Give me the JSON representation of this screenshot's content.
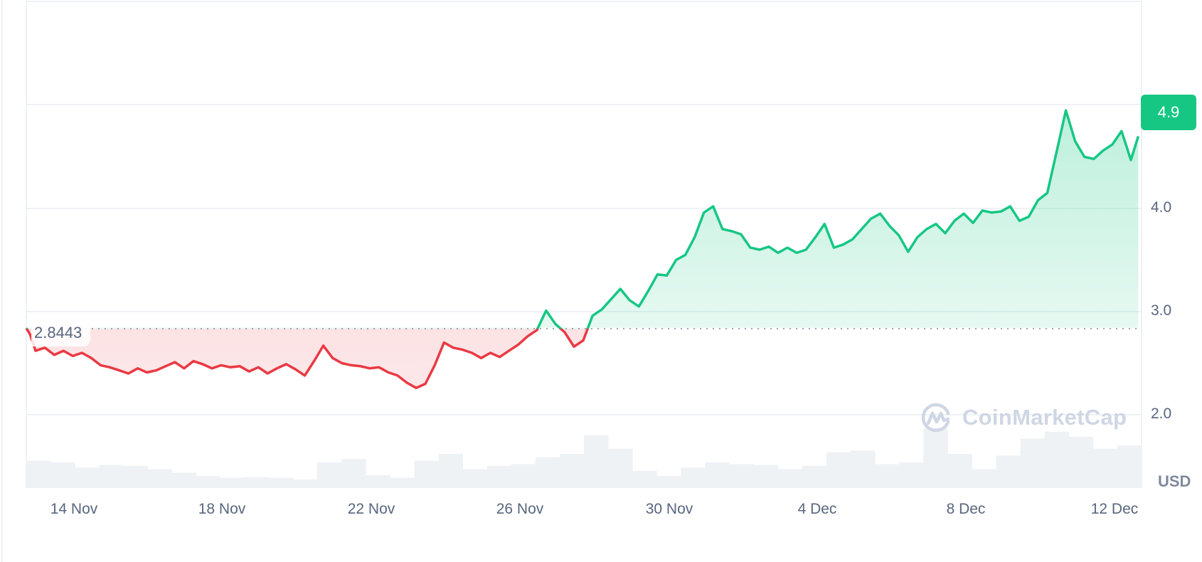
{
  "chart_data": {
    "type": "area",
    "title": "",
    "xlabel": "",
    "ylabel": "USD",
    "ylim": [
      1.3,
      5.6
    ],
    "grid": true,
    "baseline": 2.8443,
    "current_price": 4.9,
    "x_ticks": [
      "14 Nov",
      "18 Nov",
      "22 Nov",
      "26 Nov",
      "30 Nov",
      "4 Dec",
      "8 Dec",
      "12 Dec"
    ],
    "y_ticks": [
      "2.0",
      "3.0",
      "4.0"
    ],
    "colors": {
      "up": "#16c784",
      "down": "#ea3943",
      "grid": "#eff2f5",
      "volume": "#eff2f5"
    },
    "series": [
      {
        "name": "Price",
        "x_days": [
          0,
          0.1,
          0.25,
          0.5,
          0.75,
          1,
          1.25,
          1.5,
          1.75,
          2,
          2.25,
          2.5,
          2.75,
          3,
          3.25,
          3.5,
          3.75,
          4,
          4.25,
          4.5,
          4.75,
          5,
          5.25,
          5.5,
          5.75,
          6,
          6.25,
          6.5,
          6.75,
          7,
          7.25,
          7.5,
          7.75,
          8,
          8.25,
          8.5,
          8.75,
          9,
          9.25,
          9.5,
          9.75,
          10,
          10.25,
          10.5,
          10.75,
          11,
          11.25,
          11.5,
          11.75,
          12,
          12.25,
          12.5,
          12.75,
          13,
          13.25,
          13.5,
          13.75,
          14,
          14.25,
          14.5,
          14.75,
          15,
          15.25,
          15.5,
          15.75,
          16,
          16.25,
          16.5,
          16.75,
          17,
          17.25,
          17.5,
          17.75,
          18,
          18.25,
          18.5,
          18.75,
          19,
          19.25,
          19.5,
          19.75,
          20,
          20.25,
          20.5,
          20.75,
          21,
          21.25,
          21.5,
          21.75,
          22,
          22.25,
          22.5,
          22.75,
          23,
          23.25,
          23.5,
          23.75,
          24,
          24.25,
          24.5,
          24.75,
          25,
          25.25,
          25.5,
          25.75,
          26,
          26.25,
          26.5,
          26.75,
          27,
          27.25,
          27.5,
          27.75,
          28,
          28.25,
          28.5,
          28.75,
          29,
          29.25,
          29.5,
          29.75,
          29.95
        ],
        "values": [
          2.84,
          2.78,
          2.62,
          2.65,
          2.58,
          2.62,
          2.57,
          2.6,
          2.55,
          2.48,
          2.46,
          2.43,
          2.4,
          2.45,
          2.41,
          2.43,
          2.47,
          2.51,
          2.45,
          2.52,
          2.49,
          2.45,
          2.48,
          2.46,
          2.47,
          2.42,
          2.46,
          2.4,
          2.45,
          2.49,
          2.44,
          2.38,
          2.52,
          2.67,
          2.55,
          2.5,
          2.48,
          2.47,
          2.45,
          2.46,
          2.41,
          2.38,
          2.31,
          2.26,
          2.3,
          2.48,
          2.7,
          2.65,
          2.63,
          2.6,
          2.55,
          2.6,
          2.56,
          2.62,
          2.68,
          2.76,
          2.82,
          3.01,
          2.88,
          2.8,
          2.66,
          2.72,
          2.96,
          3.02,
          3.12,
          3.22,
          3.11,
          3.05,
          3.2,
          3.36,
          3.35,
          3.5,
          3.55,
          3.72,
          3.96,
          4.02,
          3.8,
          3.78,
          3.75,
          3.62,
          3.6,
          3.63,
          3.57,
          3.62,
          3.57,
          3.6,
          3.72,
          3.85,
          3.62,
          3.65,
          3.7,
          3.8,
          3.9,
          3.95,
          3.83,
          3.74,
          3.58,
          3.72,
          3.8,
          3.85,
          3.76,
          3.88,
          3.95,
          3.86,
          3.98,
          3.96,
          3.97,
          4.02,
          3.88,
          3.92,
          4.08,
          4.15,
          4.55,
          4.95,
          4.65,
          4.5,
          4.48,
          4.56,
          4.62,
          4.75,
          4.47,
          4.7,
          4.55,
          4.3,
          4.35,
          4.25,
          4.72,
          4.92
        ]
      },
      {
        "name": "Volume",
        "relative_heights": [
          0.32,
          0.3,
          0.24,
          0.27,
          0.26,
          0.22,
          0.18,
          0.14,
          0.12,
          0.13,
          0.12,
          0.1,
          0.3,
          0.34,
          0.15,
          0.12,
          0.32,
          0.4,
          0.22,
          0.26,
          0.28,
          0.36,
          0.4,
          0.62,
          0.46,
          0.2,
          0.14,
          0.24,
          0.3,
          0.28,
          0.27,
          0.22,
          0.26,
          0.42,
          0.44,
          0.28,
          0.3,
          0.7,
          0.4,
          0.22,
          0.38,
          0.58,
          0.66,
          0.6,
          0.46,
          0.5
        ]
      }
    ]
  },
  "axis": {
    "y_labels": [
      "4.0",
      "3.0",
      "2.0"
    ],
    "x_labels": [
      "14 Nov",
      "18 Nov",
      "22 Nov",
      "26 Nov",
      "30 Nov",
      "4 Dec",
      "8 Dec",
      "12 Dec"
    ],
    "unit": "USD"
  },
  "price_badge": "4.9",
  "baseline_label": "2.8443",
  "watermark": "CoinMarketCap"
}
